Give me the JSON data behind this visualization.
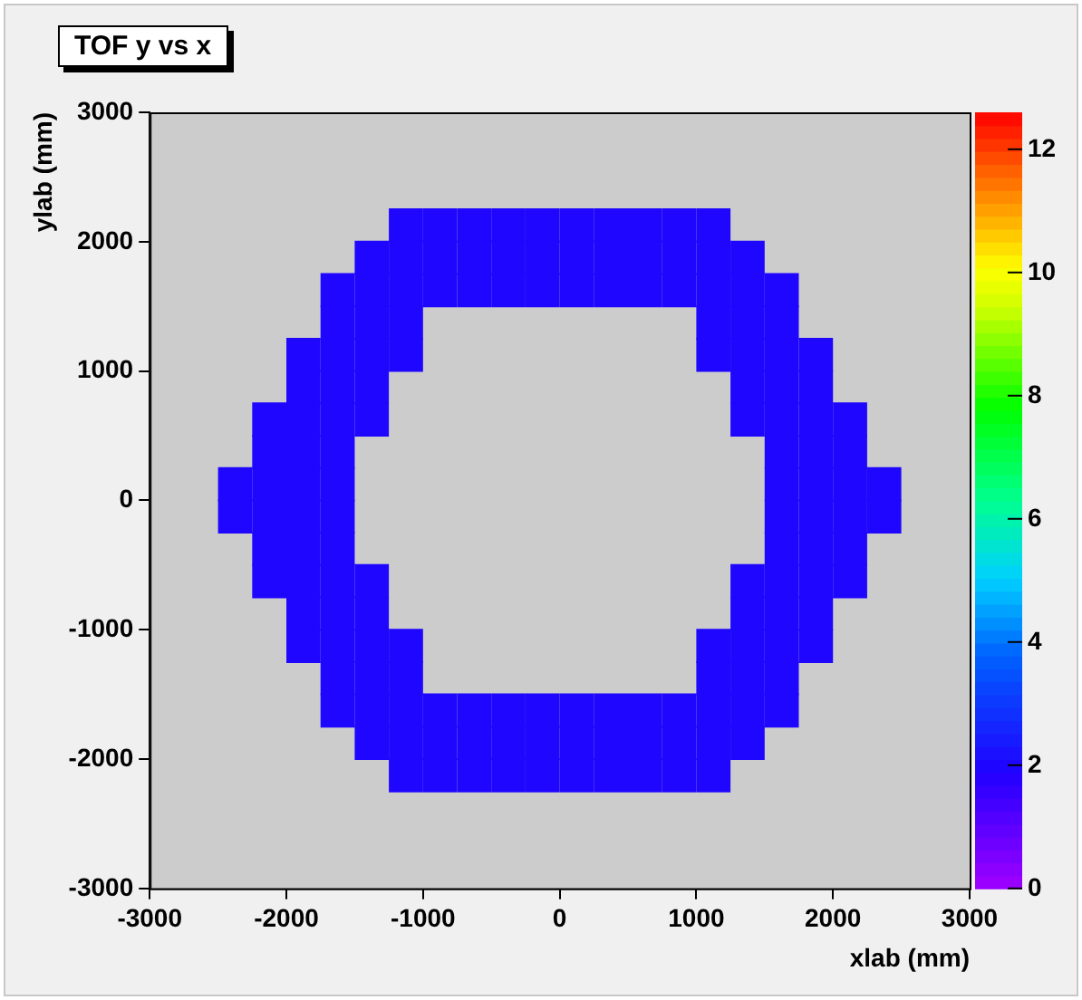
{
  "chart_data": {
    "type": "heatmap",
    "title": "TOF y vs x",
    "xlabel": "xlab (mm)",
    "ylabel": "ylab (mm)",
    "xlim": [
      -3000,
      3000
    ],
    "xticks": [
      -3000,
      -2000,
      -1000,
      0,
      1000,
      2000,
      3000
    ],
    "ylim": [
      -3000,
      3000
    ],
    "yticks": [
      -3000,
      -2000,
      -1000,
      0,
      1000,
      2000,
      3000
    ],
    "clim": [
      0,
      12.6
    ],
    "cticks": [
      0,
      2,
      4,
      6,
      8,
      10,
      12
    ],
    "x": [
      -2375,
      -2125,
      -1875,
      -1625,
      -1375,
      -1125,
      -875,
      -625,
      -375,
      -125,
      125,
      375,
      625,
      875,
      1125,
      1375,
      1625,
      1875,
      2125,
      2375
    ],
    "y": [
      2125,
      1875,
      1625,
      1375,
      1125,
      875,
      625,
      375,
      125,
      -125,
      -375,
      -625,
      -875,
      -1125,
      -1375,
      -1625,
      -1875,
      -2125
    ],
    "cells": [
      [
        null,
        null,
        null,
        null,
        null,
        2,
        2,
        2,
        2,
        2,
        2,
        2,
        2,
        2,
        2,
        null,
        null,
        null,
        null,
        null
      ],
      [
        null,
        null,
        null,
        null,
        2,
        2,
        2,
        2,
        2,
        2,
        2,
        2,
        2,
        2,
        2,
        2,
        null,
        null,
        null,
        null
      ],
      [
        null,
        null,
        null,
        2,
        2,
        2,
        2,
        2,
        2,
        2,
        2,
        2,
        2,
        2,
        2,
        2,
        2,
        null,
        null,
        null
      ],
      [
        null,
        null,
        null,
        2,
        2,
        2,
        null,
        null,
        null,
        null,
        null,
        null,
        null,
        null,
        2,
        2,
        2,
        null,
        null,
        null
      ],
      [
        null,
        null,
        2,
        2,
        2,
        2,
        null,
        null,
        null,
        null,
        null,
        null,
        null,
        null,
        2,
        2,
        2,
        2,
        null,
        null
      ],
      [
        null,
        null,
        2,
        2,
        2,
        null,
        null,
        null,
        null,
        null,
        null,
        null,
        null,
        null,
        null,
        2,
        2,
        2,
        null,
        null
      ],
      [
        null,
        2,
        2,
        2,
        2,
        null,
        null,
        null,
        null,
        null,
        null,
        null,
        null,
        null,
        null,
        2,
        2,
        2,
        2,
        null
      ],
      [
        null,
        2,
        2,
        2,
        null,
        null,
        null,
        null,
        null,
        null,
        null,
        null,
        null,
        null,
        null,
        null,
        2,
        2,
        2,
        null
      ],
      [
        2,
        2,
        2,
        2,
        null,
        null,
        null,
        null,
        null,
        null,
        null,
        null,
        null,
        null,
        null,
        null,
        2,
        2,
        2,
        2
      ],
      [
        2,
        2,
        2,
        2,
        null,
        null,
        null,
        null,
        null,
        null,
        null,
        null,
        null,
        null,
        null,
        null,
        2,
        2,
        2,
        2
      ],
      [
        null,
        2,
        2,
        2,
        null,
        null,
        null,
        null,
        null,
        null,
        null,
        null,
        null,
        null,
        null,
        null,
        2,
        2,
        2,
        null
      ],
      [
        null,
        2,
        2,
        2,
        2,
        null,
        null,
        null,
        null,
        null,
        null,
        null,
        null,
        null,
        null,
        2,
        2,
        2,
        2,
        null
      ],
      [
        null,
        null,
        2,
        2,
        2,
        null,
        null,
        null,
        null,
        null,
        null,
        null,
        null,
        null,
        null,
        2,
        2,
        2,
        null,
        null
      ],
      [
        null,
        null,
        2,
        2,
        2,
        2,
        null,
        null,
        null,
        null,
        null,
        null,
        null,
        null,
        2,
        2,
        2,
        2,
        null,
        null
      ],
      [
        null,
        null,
        null,
        2,
        2,
        2,
        null,
        null,
        null,
        null,
        null,
        null,
        null,
        null,
        2,
        2,
        2,
        null,
        null,
        null
      ],
      [
        null,
        null,
        null,
        2,
        2,
        2,
        2,
        2,
        2,
        2,
        2,
        2,
        2,
        2,
        2,
        2,
        2,
        null,
        null,
        null
      ],
      [
        null,
        null,
        null,
        null,
        2,
        2,
        2,
        2,
        2,
        2,
        2,
        2,
        2,
        2,
        2,
        2,
        null,
        null,
        null,
        null
      ],
      [
        null,
        null,
        null,
        null,
        null,
        2,
        2,
        2,
        2,
        2,
        2,
        2,
        2,
        2,
        2,
        null,
        null,
        null,
        null,
        null
      ]
    ]
  }
}
